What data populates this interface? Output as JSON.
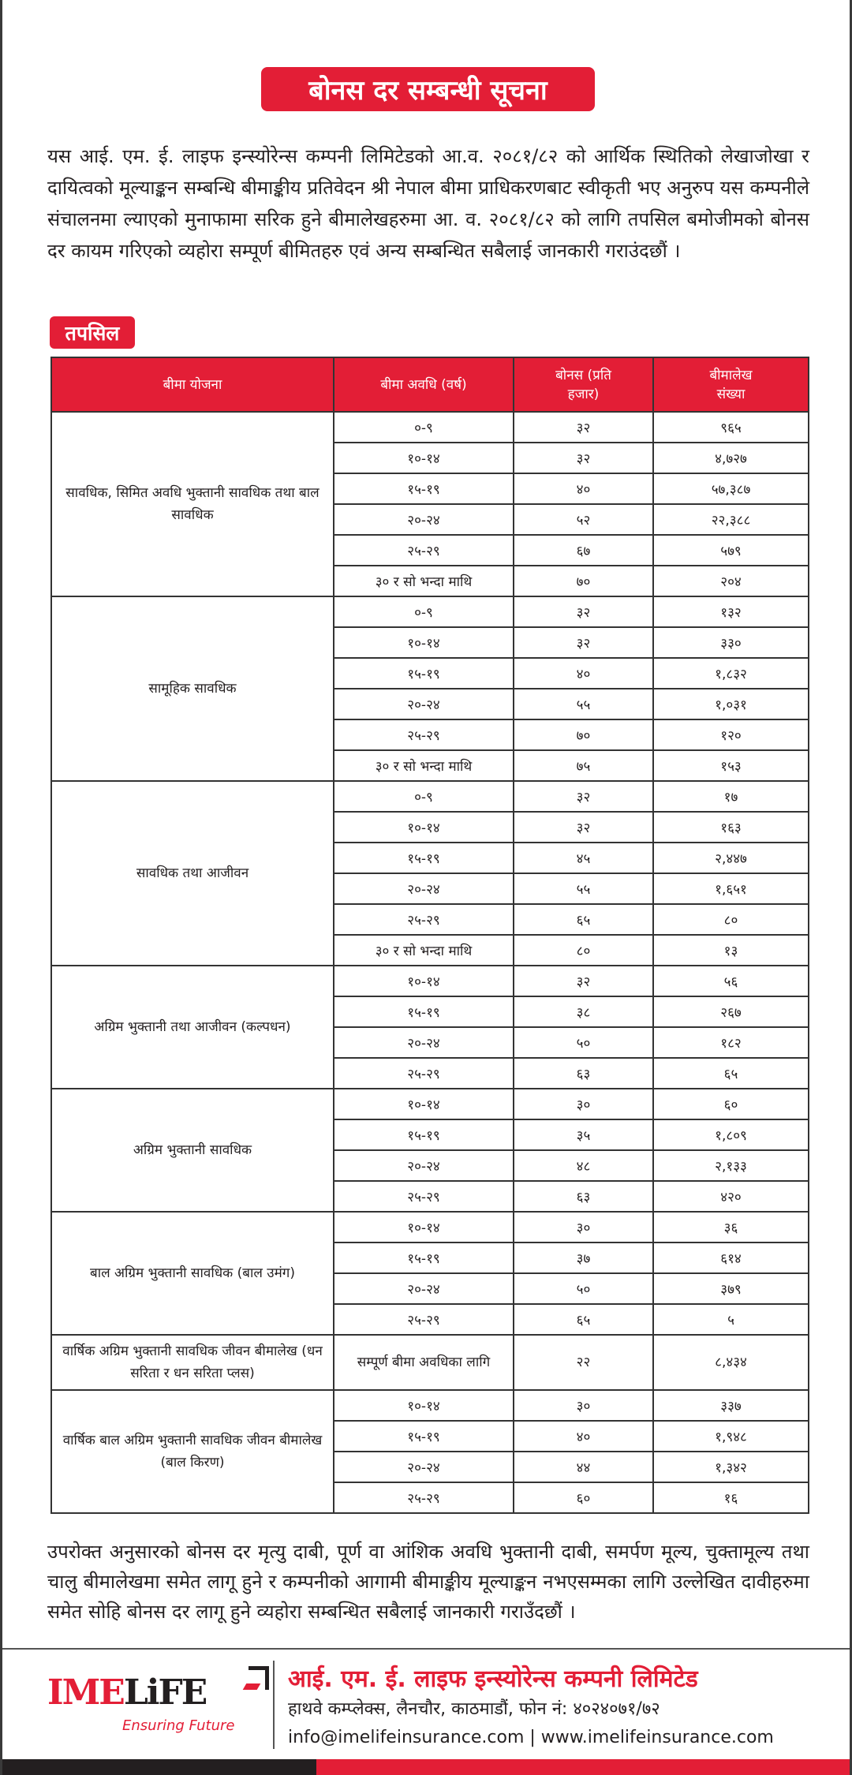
{
  "title": "बोनस दर सम्बन्धी सूचना",
  "intro": "यस आई. एम. ई. लाइफ इन्स्योरेन्स कम्पनी लिमिटेडको आ.व. २०८१/८२ को आर्थिक स्थितिको लेखाजोखा र दायित्वको मूल्याङ्कन सम्बन्धि बीमाङ्कीय प्रतिवेदन श्री नेपाल बीमा प्राधिकरणबाट स्वीकृती भए अनुरुप यस कम्पनीले संचालनमा ल्याएको मुनाफामा सरिक हुने बीमालेखहरुमा आ. व. २०८१/८२ को लागि तपसिल बमोजीमको बोनस दर कायम गरिएको व्यहोरा सम्पूर्ण बीमितहरु एवं अन्य सम्बन्धित सबैलाई जानकारी गराउंदछौं ।",
  "section_label": "तपसिल",
  "table": {
    "headers": [
      "बीमा योजना",
      "बीमा अवधि (वर्ष)",
      "बोनस (प्रति हजार)",
      "बीमालेख संख्या"
    ],
    "groups": [
      {
        "plan": "सावधिक, सिमित अवधि भुक्तानी सावधिक तथा बाल सावधिक",
        "rows": [
          [
            "०-९",
            "३२",
            "९६५"
          ],
          [
            "१०-१४",
            "३२",
            "४,७२७"
          ],
          [
            "१५-१९",
            "४०",
            "५७,३८७"
          ],
          [
            "२०-२४",
            "५२",
            "२२,३८८"
          ],
          [
            "२५-२९",
            "६७",
            "५७९"
          ],
          [
            "३० र सो भन्दा माथि",
            "७०",
            "२०४"
          ]
        ]
      },
      {
        "plan": "सामूहिक सावधिक",
        "rows": [
          [
            "०-९",
            "३२",
            "१३२"
          ],
          [
            "१०-१४",
            "३२",
            "३३०"
          ],
          [
            "१५-१९",
            "४०",
            "१,८३२"
          ],
          [
            "२०-२४",
            "५५",
            "१,०३१"
          ],
          [
            "२५-२९",
            "७०",
            "१२०"
          ],
          [
            "३० र सो भन्दा माथि",
            "७५",
            "१५३"
          ]
        ]
      },
      {
        "plan": "सावधिक तथा आजीवन",
        "rows": [
          [
            "०-९",
            "३२",
            "१७"
          ],
          [
            "१०-१४",
            "३२",
            "१६३"
          ],
          [
            "१५-१९",
            "४५",
            "२,४४७"
          ],
          [
            "२०-२४",
            "५५",
            "१,६५१"
          ],
          [
            "२५-२९",
            "६५",
            "८०"
          ],
          [
            "३० र सो भन्दा माथि",
            "८०",
            "१३"
          ]
        ]
      },
      {
        "plan": "अग्रिम भुक्तानी तथा आजीवन (कल्पधन)",
        "rows": [
          [
            "१०-१४",
            "३२",
            "५६"
          ],
          [
            "१५-१९",
            "३८",
            "२६७"
          ],
          [
            "२०-२४",
            "५०",
            "१८२"
          ],
          [
            "२५-२९",
            "६३",
            "६५"
          ]
        ]
      },
      {
        "plan": "अग्रिम भुक्तानी सावधिक",
        "rows": [
          [
            "१०-१४",
            "३०",
            "६०"
          ],
          [
            "१५-१९",
            "३५",
            "१,८०९"
          ],
          [
            "२०-२४",
            "४८",
            "२,१३३"
          ],
          [
            "२५-२९",
            "६३",
            "४२०"
          ]
        ]
      },
      {
        "plan": "बाल अग्रिम भुक्तानी सावधिक (बाल उमंग)",
        "rows": [
          [
            "१०-१४",
            "३०",
            "३६"
          ],
          [
            "१५-१९",
            "३७",
            "६१४"
          ],
          [
            "२०-२४",
            "५०",
            "३७९"
          ],
          [
            "२५-२९",
            "६५",
            "५"
          ]
        ]
      },
      {
        "plan": "वार्षिक अग्रिम भुक्तानी सावधिक जीवन बीमालेख (धन सरिता र धन सरिता प्लस)",
        "rows": [
          [
            "सम्पूर्ण बीमा अवधिका लागि",
            "२२",
            "८,४३४"
          ]
        ]
      },
      {
        "plan": "वार्षिक बाल अग्रिम भुक्तानी सावधिक जीवन बीमालेख (बाल किरण)",
        "rows": [
          [
            "१०-१४",
            "३०",
            "३३७"
          ],
          [
            "१५-१९",
            "४०",
            "१,९४८"
          ],
          [
            "२०-२४",
            "४४",
            "१,३४२"
          ],
          [
            "२५-२९",
            "६०",
            "१६"
          ]
        ]
      }
    ]
  },
  "closing": "उपरोक्त अनुसारको बोनस दर मृत्यु दाबी, पूर्ण वा आंशिक अवधि भुक्तानी दाबी, समर्पण मूल्य, चुक्तामूल्य तथा चालु बीमालेखमा समेत लागू हुने र कम्पनीको आगामी बीमाङ्कीय मूल्याङ्कन नभएसम्मका लागि उल्लेखित दावीहरुमा समेत सोहि बोनस दर लागू हुने व्यहोरा सम्बन्धित सबैलाई जानकारी गराउँदछौं ।",
  "footer": {
    "logo_ime": "IME",
    "logo_life": "LiFE",
    "tagline": "Ensuring Future",
    "company": "आई. एम. ई. लाइफ इन्स्योरेन्स कम्पनी लिमिटेड",
    "address": "हाथवे कम्प्लेक्स, लैनचौर, काठमाडौं, फोन नं: ४०२४०७१/७२",
    "contact": "info@imelifeinsurance.com | www.imelifeinsurance.com"
  },
  "colors": {
    "brand_red": "#e31e36",
    "dark": "#231f20"
  }
}
